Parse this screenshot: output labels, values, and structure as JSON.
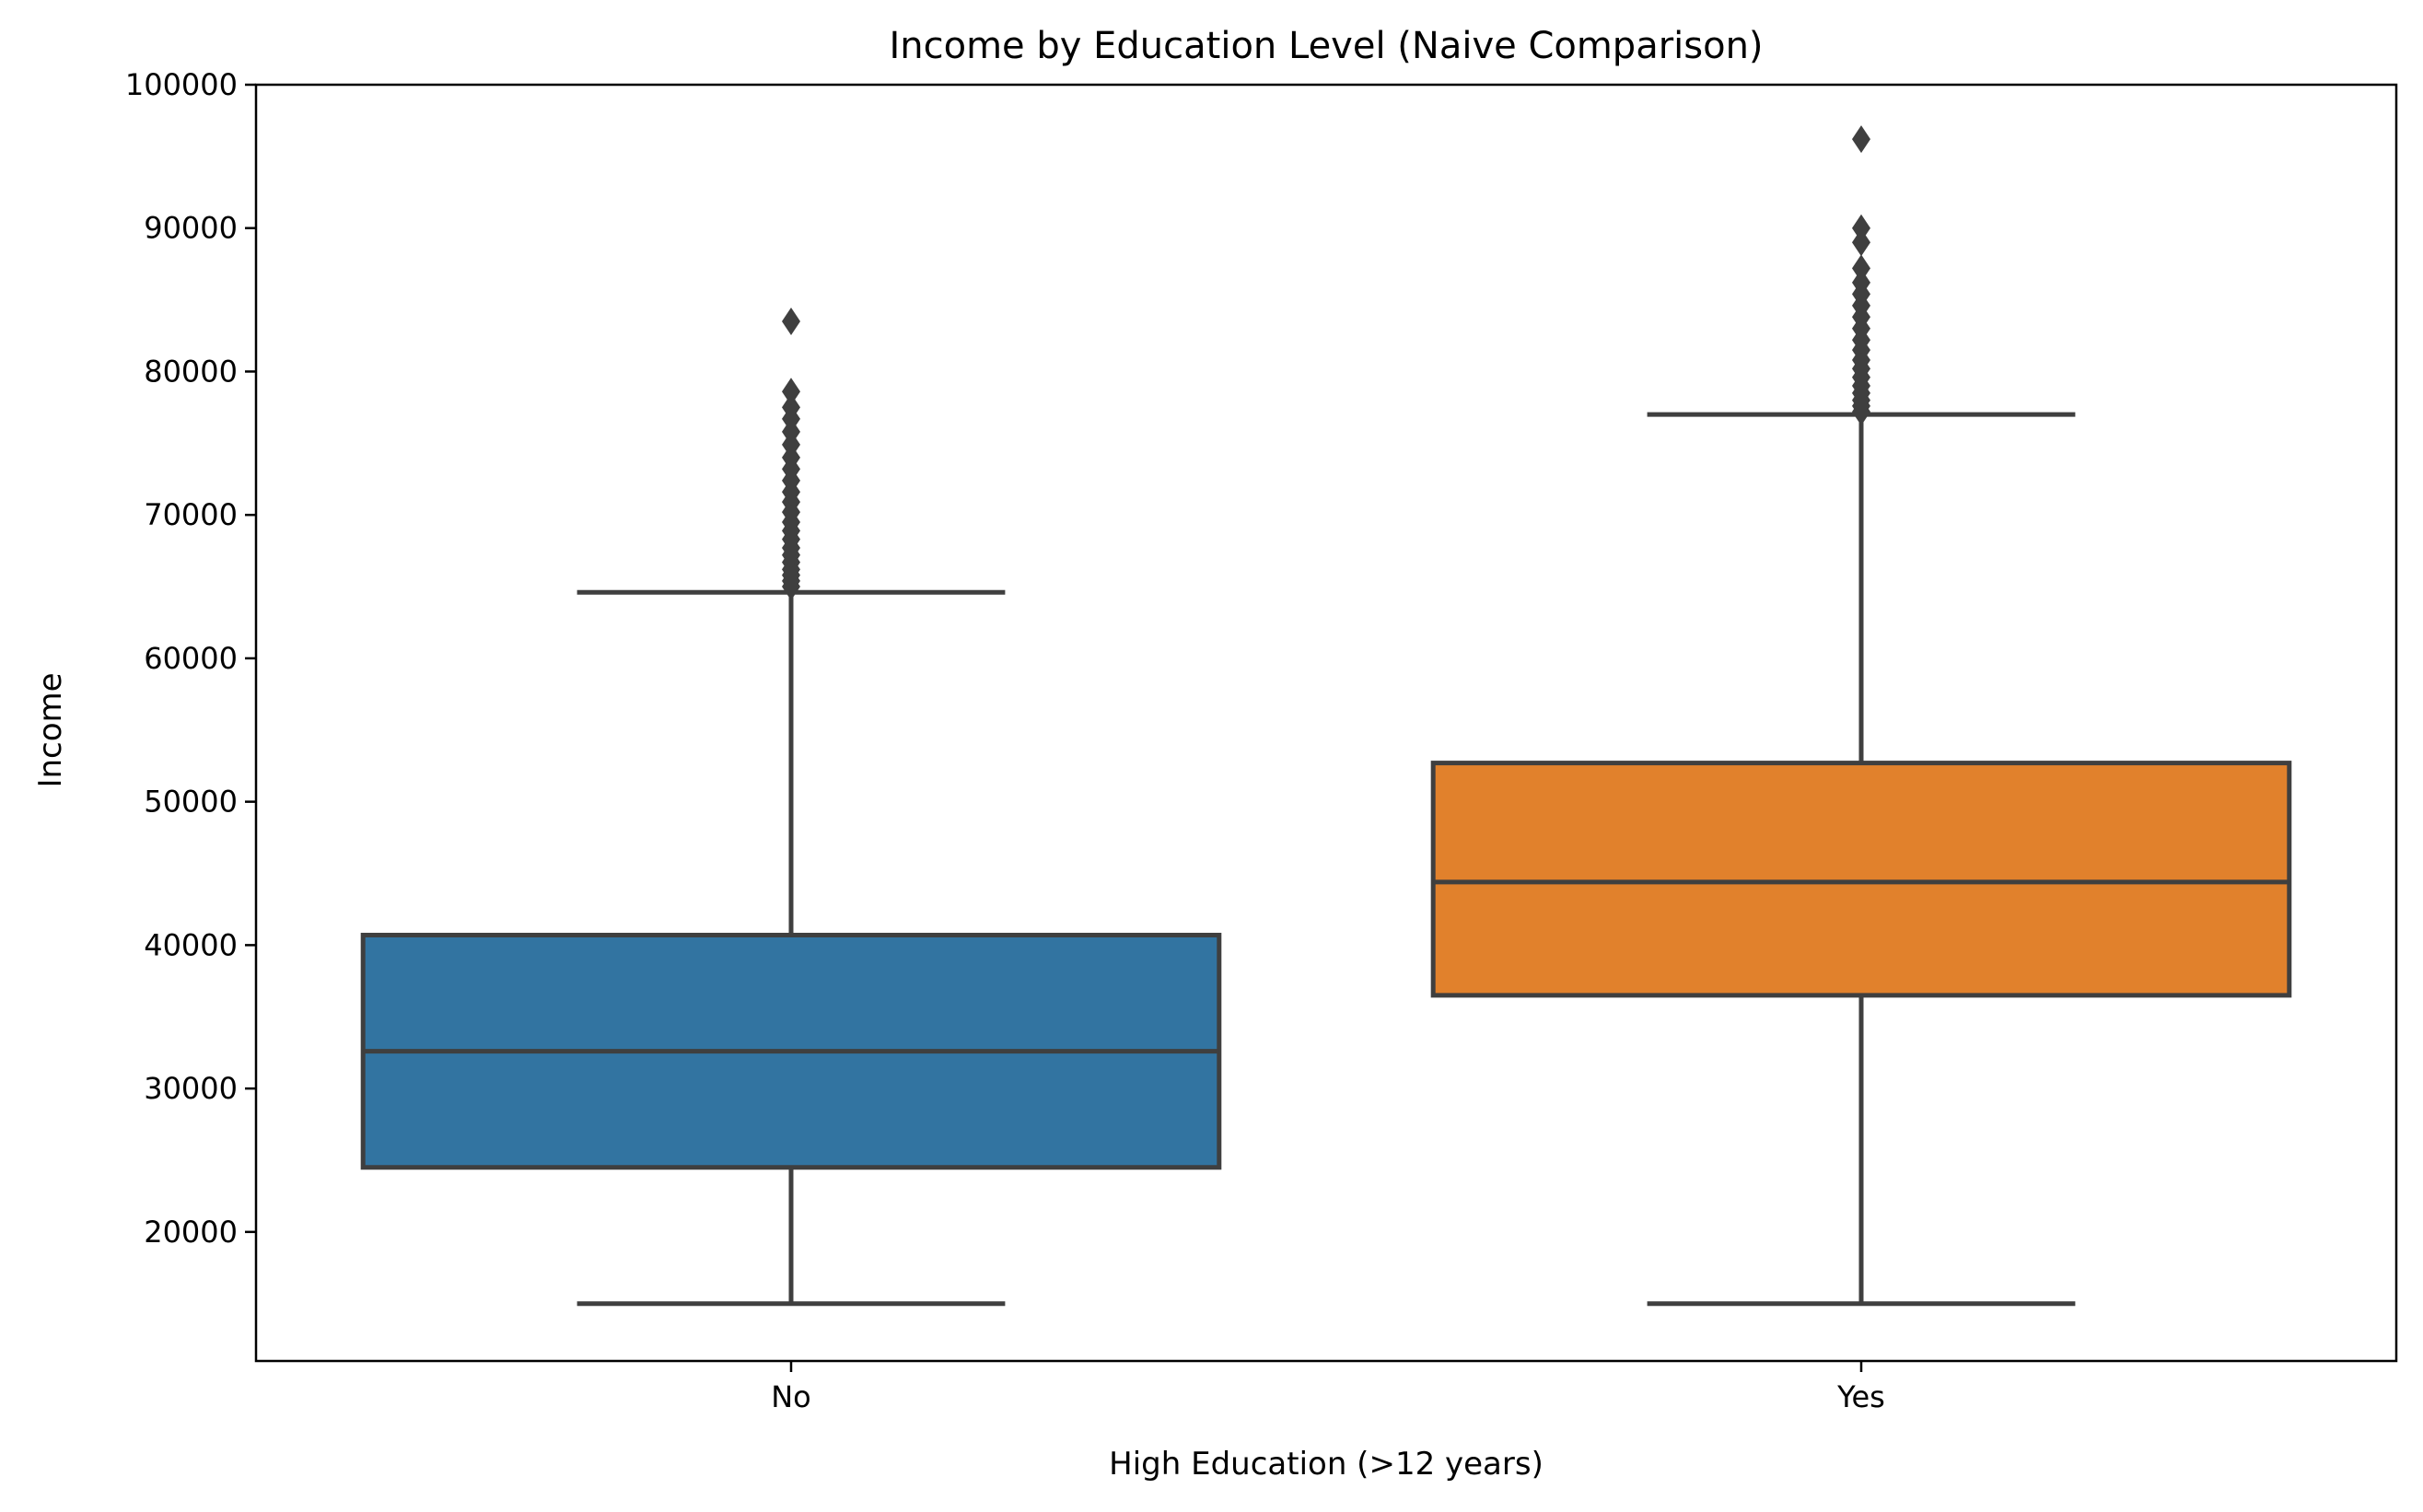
{
  "chart_data": {
    "type": "box",
    "title": "Income by Education Level (Naive Comparison)",
    "xlabel": "High Education (>12 years)",
    "ylabel": "Income",
    "ylim": [
      11000,
      100000
    ],
    "yticks": [
      20000,
      30000,
      40000,
      50000,
      60000,
      70000,
      80000,
      90000,
      100000
    ],
    "grid": false,
    "categories": [
      "No",
      "Yes"
    ],
    "colors": [
      "#3274a1",
      "#e1812c"
    ],
    "line_color": "#3f3f3f",
    "boxes": [
      {
        "category": "No",
        "whisker_low": 15000,
        "q1": 24500,
        "median": 32600,
        "q3": 40700,
        "whisker_high": 64600,
        "outliers": [
          65000,
          65400,
          65800,
          66200,
          66700,
          67200,
          67700,
          68300,
          68900,
          69500,
          70200,
          70900,
          71600,
          72400,
          73200,
          74000,
          74900,
          75800,
          76700,
          77500,
          78600,
          83500
        ]
      },
      {
        "category": "Yes",
        "whisker_low": 15000,
        "q1": 36500,
        "median": 44400,
        "q3": 52700,
        "whisker_high": 77000,
        "outliers": [
          77200,
          77600,
          78000,
          78500,
          79000,
          79600,
          80200,
          80800,
          81500,
          82200,
          83000,
          83800,
          84600,
          85400,
          86200,
          87200,
          89000,
          90000,
          96200
        ]
      }
    ]
  }
}
